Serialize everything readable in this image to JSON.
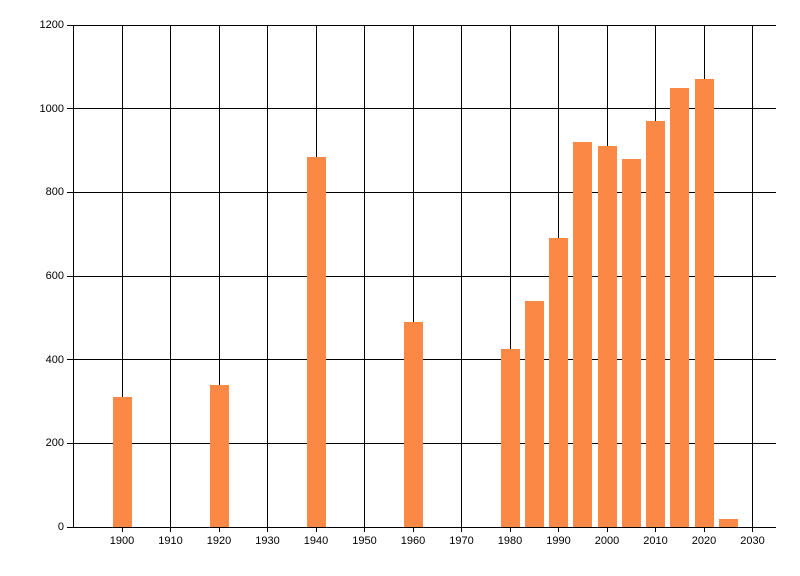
{
  "chart_data": {
    "type": "bar",
    "title": "",
    "xlabel": "",
    "ylabel": "",
    "x": [
      1900,
      1920,
      1940,
      1960,
      1980,
      1985,
      1990,
      1995,
      2000,
      2005,
      2010,
      2015,
      2020,
      2025
    ],
    "values": [
      310,
      340,
      885,
      490,
      425,
      540,
      690,
      920,
      910,
      880,
      970,
      1050,
      1070,
      20
    ],
    "x_ticks": [
      1900,
      1910,
      1920,
      1930,
      1940,
      1950,
      1960,
      1970,
      1980,
      1990,
      2000,
      2010,
      2020,
      2030
    ],
    "x_tick_labels": [
      "1900",
      "1910",
      "1920",
      "1930",
      "1940",
      "1950",
      "1960",
      "1970",
      "1980",
      "1990",
      "2000",
      "2010",
      "2020",
      "2030"
    ],
    "y_ticks": [
      0,
      200,
      400,
      600,
      800,
      1000,
      1200
    ],
    "y_tick_labels": [
      "0",
      "200",
      "400",
      "600",
      "800",
      "1000",
      "1200"
    ],
    "ylim": [
      0,
      1200
    ],
    "grid": true,
    "legend_position": "none",
    "bar_color": "#FB8845",
    "grid_color": "#000000",
    "axis_color": "#000000",
    "label_color": "#000000",
    "background_color": "#FFFFFF"
  }
}
